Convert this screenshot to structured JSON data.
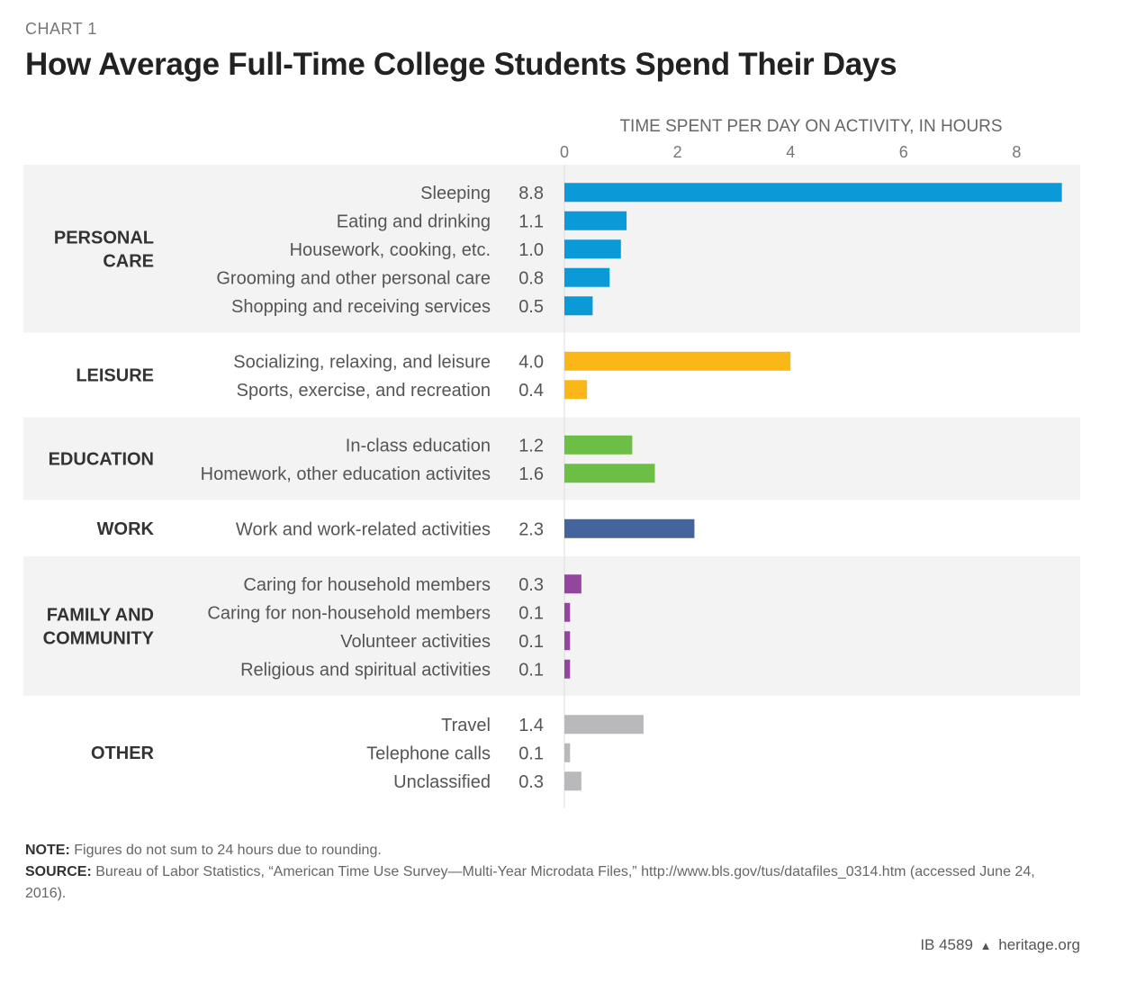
{
  "chart_label": "CHART 1",
  "title": "How Average Full-Time College Students Spend Their Days",
  "chart_data": {
    "type": "bar",
    "orientation": "horizontal",
    "title": "How Average Full-Time College Students Spend Their Days",
    "xlabel": "TIME SPENT PER DAY ON ACTIVITY, IN HOURS",
    "xlim": [
      0,
      8.8
    ],
    "xticks": [
      0,
      2,
      4,
      6,
      8
    ],
    "grid": false,
    "groups": [
      {
        "name": "PERSONAL CARE",
        "color": "#0a9ad8",
        "items": [
          {
            "label": "Sleeping",
            "value": 8.8,
            "display": "8.8"
          },
          {
            "label": "Eating and drinking",
            "value": 1.1,
            "display": "1.1"
          },
          {
            "label": "Housework, cooking, etc.",
            "value": 1.0,
            "display": "1.0"
          },
          {
            "label": "Grooming and other personal care",
            "value": 0.8,
            "display": "0.8"
          },
          {
            "label": "Shopping and receiving services",
            "value": 0.5,
            "display": "0.5"
          }
        ]
      },
      {
        "name": "LEISURE",
        "color": "#fbb618",
        "items": [
          {
            "label": "Socializing, relaxing, and leisure",
            "value": 4.0,
            "display": "4.0"
          },
          {
            "label": "Sports, exercise, and recreation",
            "value": 0.4,
            "display": "0.4"
          }
        ]
      },
      {
        "name": "EDUCATION",
        "color": "#6dbe45",
        "items": [
          {
            "label": "In-class education",
            "value": 1.2,
            "display": "1.2"
          },
          {
            "label": "Homework, other education activites",
            "value": 1.6,
            "display": "1.6"
          }
        ]
      },
      {
        "name": "WORK",
        "color": "#44649c",
        "items": [
          {
            "label": "Work and work-related activities",
            "value": 2.3,
            "display": "2.3"
          }
        ]
      },
      {
        "name": "FAMILY AND COMMUNITY",
        "color": "#94469e",
        "items": [
          {
            "label": "Caring for household members",
            "value": 0.3,
            "display": "0.3"
          },
          {
            "label": "Caring for non-household members",
            "value": 0.1,
            "display": "0.1"
          },
          {
            "label": "Volunteer activities",
            "value": 0.1,
            "display": "0.1"
          },
          {
            "label": "Religious and spiritual activities",
            "value": 0.1,
            "display": "0.1"
          }
        ]
      },
      {
        "name": "OTHER",
        "color": "#b9b9bb",
        "items": [
          {
            "label": "Travel",
            "value": 1.4,
            "display": "1.4"
          },
          {
            "label": "Telephone calls",
            "value": 0.1,
            "display": "0.1"
          },
          {
            "label": "Unclassified",
            "value": 0.3,
            "display": "0.3"
          }
        ]
      }
    ]
  },
  "note": {
    "label": "NOTE:",
    "text": "Figures do not sum to 24 hours due to rounding."
  },
  "source": {
    "label": "SOURCE:",
    "text": "Bureau of Labor Statistics, “American Time Use Survey—Multi-Year Microdata Files,” http://www.bls.gov/tus/datafiles_0314.htm (accessed June 24, 2016)."
  },
  "footer": {
    "ib_number": "IB 4589",
    "site": "heritage.org"
  }
}
